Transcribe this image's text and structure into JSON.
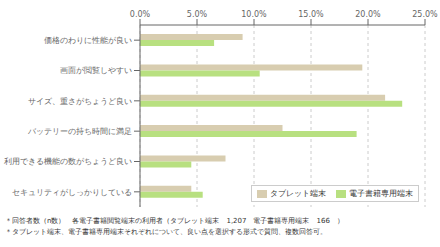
{
  "chart_data": {
    "type": "bar",
    "orientation": "horizontal",
    "categories": [
      "セキュリティがしっかりしている",
      "利用できる機能の数がちょうど良い",
      "バッテリーの持ち時間に満足",
      "サイズ、重さがちょうど良い",
      "画面が閲覧しやすい",
      "価格のわりに性能が良い"
    ],
    "series": [
      {
        "name": "タブレット端末",
        "color": "#d8cdb0",
        "values": [
          4.5,
          7.5,
          12.5,
          21.5,
          19.5,
          9.0
        ]
      },
      {
        "name": "電子書籍専用端末",
        "color": "#b8e080",
        "values": [
          5.5,
          4.5,
          19.0,
          23.0,
          10.5,
          6.5
        ]
      }
    ],
    "xlim": [
      0,
      25.0
    ],
    "xticks": [
      {
        "value": 0.0,
        "label": "0.0%"
      },
      {
        "value": 5.0,
        "label": "5.0%"
      },
      {
        "value": 10.0,
        "label": "10.0%"
      },
      {
        "value": 15.0,
        "label": "15.0%"
      },
      {
        "value": 20.0,
        "label": "20.0%"
      },
      {
        "value": 25.0,
        "label": "25.0%"
      }
    ],
    "grid": true,
    "legend": "lower right",
    "annotations": [
      "＊回答者数（n数）　各電子書籍閲覧端末の利用者（タブレット端末　1,207　電子書籍専用端末　166　）",
      "＊タブレット端末、電子書籍専用端末それぞれについて、良い点を選択する形式で質問、複数回答可。"
    ]
  }
}
